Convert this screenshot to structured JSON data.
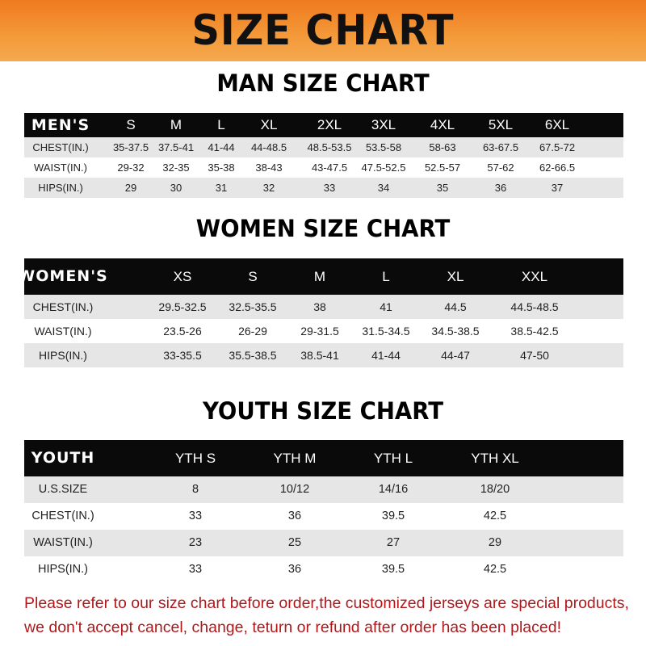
{
  "banner": {
    "title": "SIZE CHART"
  },
  "men": {
    "title": "MAN SIZE CHART",
    "header": [
      "MEN'S",
      "S",
      "M",
      "L",
      "XL",
      "2XL",
      "3XL",
      "4XL",
      "5XL",
      "6XL"
    ],
    "rows": [
      [
        "CHEST(IN.)",
        "35-37.5",
        "37.5-41",
        "41-44",
        "44-48.5",
        "48.5-53.5",
        "53.5-58",
        "58-63",
        "63-67.5",
        "67.5-72"
      ],
      [
        "WAIST(IN.)",
        "29-32",
        "32-35",
        "35-38",
        "38-43",
        "43-47.5",
        "47.5-52.5",
        "52.5-57",
        "57-62",
        "62-66.5"
      ],
      [
        "HIPS(IN.)",
        "29",
        "30",
        "31",
        "32",
        "33",
        "34",
        "35",
        "36",
        "37"
      ]
    ]
  },
  "women": {
    "title": "WOMEN SIZE CHART",
    "header": [
      "WOMEN'S",
      "XS",
      "S",
      "M",
      "L",
      "XL",
      "XXL"
    ],
    "rows": [
      [
        "CHEST(IN.)",
        "29.5-32.5",
        "32.5-35.5",
        "38",
        "41",
        "44.5",
        "44.5-48.5"
      ],
      [
        "WAIST(IN.)",
        "23.5-26",
        "26-29",
        "29-31.5",
        "31.5-34.5",
        "34.5-38.5",
        "38.5-42.5"
      ],
      [
        "HIPS(IN.)",
        "33-35.5",
        "35.5-38.5",
        "38.5-41",
        "41-44",
        "44-47",
        "47-50"
      ]
    ]
  },
  "youth": {
    "title": "YOUTH SIZE CHART",
    "header": [
      "YOUTH",
      "YTH S",
      "YTH M",
      "YTH L",
      "YTH XL"
    ],
    "rows": [
      [
        "U.S.SIZE",
        "8",
        "10/12",
        "14/16",
        "18/20"
      ],
      [
        "CHEST(IN.)",
        "33",
        "36",
        "39.5",
        "42.5"
      ],
      [
        "WAIST(IN.)",
        "23",
        "25",
        "27",
        "29"
      ],
      [
        "HIPS(IN.)",
        "33",
        "36",
        "39.5",
        "42.5"
      ]
    ]
  },
  "notice": {
    "line1": "Please refer to our size chart before order,the customized jerseys are special products,",
    "line2": "we don't accept cancel, change, teturn or refund after order has been placed!"
  },
  "colors": {
    "banner": "#f39a3a",
    "header_row": "#0a0a0a",
    "stripe": "#e6e6e6",
    "notice": "#b0181c"
  }
}
